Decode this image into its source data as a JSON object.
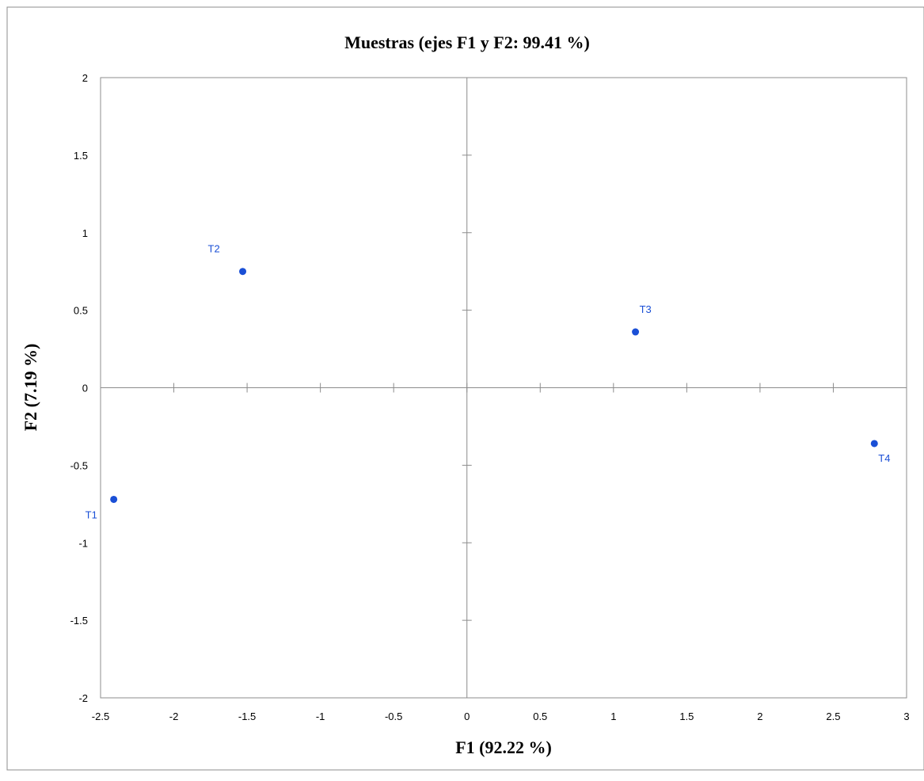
{
  "chart_data": {
    "type": "scatter",
    "title": "Muestras (ejes F1 y F2: 99.41 %)",
    "xlabel": "F1 (92.22 %)",
    "ylabel": "F2 (7.19 %)",
    "xlim": [
      -2.5,
      3
    ],
    "ylim": [
      -2,
      2
    ],
    "xticks": [
      -2.5,
      -2,
      -1.5,
      -1,
      -0.5,
      0,
      0.5,
      1,
      1.5,
      2,
      2.5,
      3
    ],
    "yticks": [
      -2,
      -1.5,
      -1,
      -0.5,
      0,
      0.5,
      1,
      1.5,
      2
    ],
    "grid": false,
    "legend": "none",
    "point_color": "#1a4fd6",
    "points": [
      {
        "label": "T1",
        "x": -2.41,
        "y": -0.72,
        "label_position": "below-left"
      },
      {
        "label": "T2",
        "x": -1.53,
        "y": 0.75,
        "label_position": "above-left"
      },
      {
        "label": "T3",
        "x": 1.15,
        "y": 0.36,
        "label_position": "above"
      },
      {
        "label": "T4",
        "x": 2.78,
        "y": -0.36,
        "label_position": "below-right"
      }
    ]
  }
}
